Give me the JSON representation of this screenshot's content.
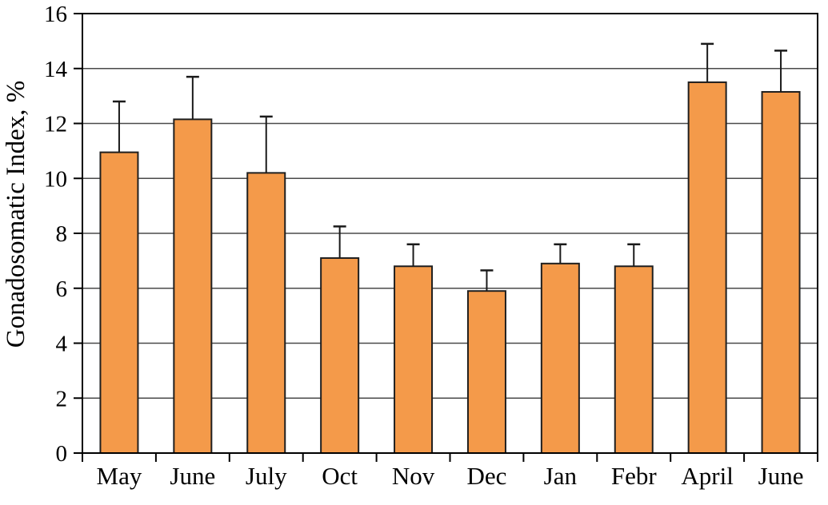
{
  "chart_data": {
    "type": "bar",
    "title": "",
    "xlabel": "",
    "ylabel": "Gonadosomatic Index, %",
    "categories": [
      "May",
      "June",
      "July",
      "Oct",
      "Nov",
      "Dec",
      "Jan",
      "Febr",
      "April",
      "June"
    ],
    "values": [
      10.95,
      12.15,
      10.2,
      7.1,
      6.8,
      5.9,
      6.9,
      6.8,
      13.5,
      13.15
    ],
    "errors_plus": [
      1.85,
      1.55,
      2.05,
      1.15,
      0.8,
      0.75,
      0.7,
      0.8,
      1.4,
      1.5
    ],
    "ylim": [
      0,
      16
    ],
    "yticks": [
      0,
      2,
      4,
      6,
      8,
      10,
      12,
      14,
      16
    ],
    "grid": true,
    "legend": "none",
    "colors": {
      "bar_fill": "#F49A4A",
      "bar_border": "#1f1f1f",
      "error_bar": "#1a1a1a",
      "gridline": "#4a4a4a",
      "axis": "#000000",
      "background": "#ffffff",
      "text": "#000000"
    }
  }
}
